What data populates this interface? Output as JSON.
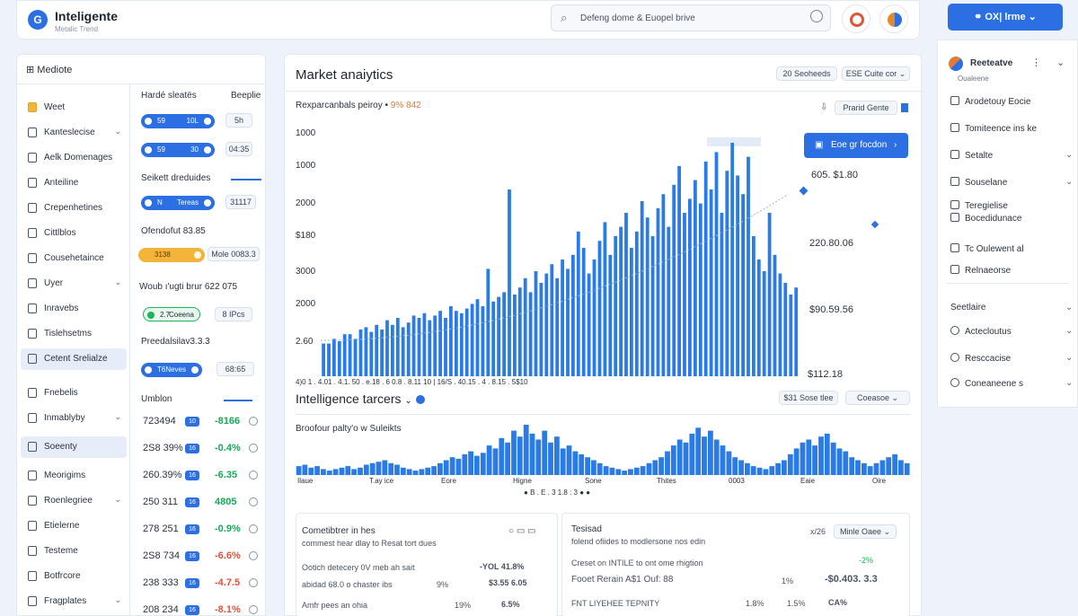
{
  "app": {
    "name": "Inteligente",
    "subtitle": "Metalic Trend"
  },
  "search": {
    "text": "Defeng dome & Euopel brive"
  },
  "header": {
    "account_label": "OX| lrme"
  },
  "nav": {
    "header": "Mediote",
    "items": [
      {
        "label": "Weet",
        "icon": "folder-icon"
      },
      {
        "label": "Kanteslecise",
        "chevron": true
      },
      {
        "label": "Aelk Domenages"
      },
      {
        "label": "Anteiline"
      },
      {
        "label": "Crepenhetines"
      },
      {
        "label": "Cittlblos"
      },
      {
        "label": "Cousehetaince"
      },
      {
        "label": "Uyer",
        "chevron": true
      },
      {
        "label": "Inravebs"
      },
      {
        "label": "Tislehsetms"
      },
      {
        "label": "Cetent Srelialze",
        "active": true
      },
      {
        "label": "Fnebelis"
      },
      {
        "label": "Inmablyby",
        "chevron": true
      },
      {
        "label": "Soeenty",
        "active": true
      },
      {
        "label": "Meorigims"
      },
      {
        "label": "Roenlegriee",
        "chevron": true
      },
      {
        "label": "Etielerne"
      },
      {
        "label": "Testeme"
      },
      {
        "label": "Botfrcore"
      },
      {
        "label": "Fragplates",
        "chevron": true
      }
    ]
  },
  "subpanel": {
    "heading1": "Hardé sleatës",
    "heading1_right": "Beeplie",
    "pill1": {
      "a": "59",
      "b": "10L"
    },
    "chip1": "5h",
    "pill2": {
      "a": "59",
      "b": "30"
    },
    "chip2": "04:35",
    "heading2": "Seikett dreduides",
    "pill3": {
      "a": "N",
      "b": "Tereas"
    },
    "chip3": "31117",
    "line1": "Ofendofut 83.85",
    "pill4": {
      "a": "3138"
    },
    "chip4": "Mole 0083.3",
    "line2": "Woub ı'ugti brur 622 075",
    "pill5": {
      "a": "2.7",
      "b": "Coeena"
    },
    "chip5": "8 IPcs",
    "line3": "Preedalsilav3.3.3",
    "pill6": {
      "a": "T6",
      "b": "Neves"
    },
    "chip6": "68:65",
    "line4": "Umblon",
    "rows": [
      {
        "value": "723494",
        "badge": "10",
        "change": "-8166",
        "dir": "up"
      },
      {
        "value": "2S8 39%",
        "badge": "16",
        "change": "-0.4%",
        "dir": "up"
      },
      {
        "value": "260.39%",
        "badge": "16",
        "change": "-6.35",
        "dir": "up"
      },
      {
        "value": "250 311",
        "badge": "16",
        "change": "4805",
        "dir": "up"
      },
      {
        "value": "278 251",
        "badge": "16",
        "change": "-0.9%",
        "dir": "up"
      },
      {
        "value": "2S8 734",
        "badge": "16",
        "change": "-6.6%",
        "dir": "dn"
      },
      {
        "value": "238 333",
        "badge": "16",
        "change": "-4.7.5",
        "dir": "dn"
      },
      {
        "value": "208 234",
        "badge": "16",
        "change": "-8.1%",
        "dir": "dn"
      }
    ]
  },
  "main": {
    "title": "Market anaiytics",
    "btn1": "20 Seoheeds",
    "btn2": "ESE Cuite cor",
    "chart_subtitle": "Rexparcanbals peiroy •",
    "chart_subtitle_hl": "9% 842",
    "toolbar_chip": "Prarid Gente",
    "action_button": "Eoe gr focdon",
    "right_values": [
      "605. $1.80",
      "220.80.06",
      "$90.59.56",
      "$112.18"
    ],
    "x_labels": "4)0 1 . 4.01 . 4.1. 50 . e.18 . 6 0.8 . 8.11 10 | 16/S . 40.15 . 4 . 8.15 . 5$10",
    "section_title": "Intelligence tarcers",
    "section_chip1": "$31 Sose tlee",
    "section_chip2": "Coeasoe",
    "section_sub": "Broofour palty'o w Suleikts",
    "x2_labels": [
      "Ilaue",
      "T.ay ice",
      "Eore",
      "Higne",
      "Sone",
      "Thites",
      "0003",
      "Eaie",
      "Oire"
    ],
    "legend": "B . E . 3 1.8 : 3",
    "panel1": {
      "title": "Cometibtrer in hes",
      "sub": "commest hear dlay to Resat tort dues",
      "r1_label": "Ootich detecery 0V meb ah sait",
      "r1_val": "-YOL 41.8%",
      "r2_label": "abidad 68.0 o chaster ibs",
      "r2_pct": "9%",
      "r2_val": "$3.55 6.05",
      "r3_label": "Amfr pees an ohia",
      "r3_pct": "19%",
      "r3_val": "6.5%"
    },
    "panel2": {
      "title": "Tesisad",
      "sub": "folend ofiides to modlersone nos edin",
      "extra": "x/26",
      "chip": "Minle Oaee",
      "r1_label": "Creset on INTILE to ont ome rhigtion",
      "r1_tag": "-2%",
      "r2_label": "Fooet Rerain A$1 Ouf: 88",
      "r2_pct": "1%",
      "r2_val": "-$0.403. 3.3",
      "r3_label": "FNT LIYEHEE TEPNITY",
      "r3_pct": "1.8%",
      "r3_pct2": "1.5%",
      "r3_val": "CA%"
    }
  },
  "rsb": {
    "user": "Reeteatve",
    "user_sub": "Oualeene",
    "items": [
      {
        "label": "Arodetouy Eocie"
      },
      {
        "label": "Tomiteence ins ke"
      },
      {
        "label": "Setalte",
        "chevron": true
      },
      {
        "label": "Souselane",
        "chevron": true
      },
      {
        "label": "Teregielise"
      },
      {
        "label": "Bocedidunace"
      },
      {
        "label": "Tc Oulewent al"
      },
      {
        "label": "Relnaeorse"
      }
    ],
    "section": "Seetlaire",
    "items2": [
      {
        "label": "Actecloutus"
      },
      {
        "label": "Resccacise"
      },
      {
        "label": "Coneaneene s"
      }
    ]
  },
  "chart_data": [
    {
      "type": "bar",
      "title": "Market anaiytics",
      "ylabels": [
        "1000",
        "1000",
        "2000",
        "$180",
        "3000",
        "2000",
        "2.60"
      ],
      "values": [
        14,
        14,
        16,
        15,
        18,
        18,
        16,
        20,
        21,
        19,
        22,
        20,
        24,
        22,
        25,
        21,
        23,
        26,
        25,
        27,
        24,
        26,
        28,
        25,
        30,
        28,
        27,
        29,
        31,
        33,
        30,
        46,
        32,
        34,
        36,
        80,
        35,
        38,
        42,
        36,
        45,
        40,
        44,
        48,
        42,
        50,
        46,
        52,
        62,
        55,
        44,
        50,
        58,
        66,
        52,
        60,
        64,
        70,
        55,
        62,
        75,
        68,
        60,
        72,
        78,
        64,
        82,
        90,
        70,
        76,
        84,
        74,
        92,
        80,
        96,
        70,
        88,
        100,
        86,
        78,
        94,
        60,
        50,
        45,
        70,
        52,
        44,
        40,
        35,
        38
      ]
    },
    {
      "type": "bar",
      "title": "Intelligence tarcers",
      "values": [
        6,
        7,
        5,
        6,
        4,
        3,
        4,
        5,
        6,
        4,
        5,
        7,
        8,
        9,
        10,
        8,
        7,
        5,
        4,
        3,
        4,
        5,
        6,
        8,
        10,
        12,
        11,
        14,
        16,
        13,
        15,
        20,
        18,
        25,
        22,
        30,
        26,
        34,
        28,
        24,
        30,
        22,
        26,
        18,
        20,
        16,
        14,
        12,
        10,
        8,
        6,
        5,
        4,
        3,
        4,
        5,
        6,
        8,
        10,
        12,
        16,
        20,
        24,
        22,
        28,
        32,
        26,
        30,
        24,
        20,
        16,
        12,
        10,
        8,
        6,
        5,
        4,
        6,
        8,
        10,
        14,
        18,
        22,
        24,
        20,
        26,
        28,
        22,
        18,
        16,
        12,
        10,
        8,
        6,
        8,
        10,
        12,
        14,
        10,
        8
      ]
    }
  ]
}
